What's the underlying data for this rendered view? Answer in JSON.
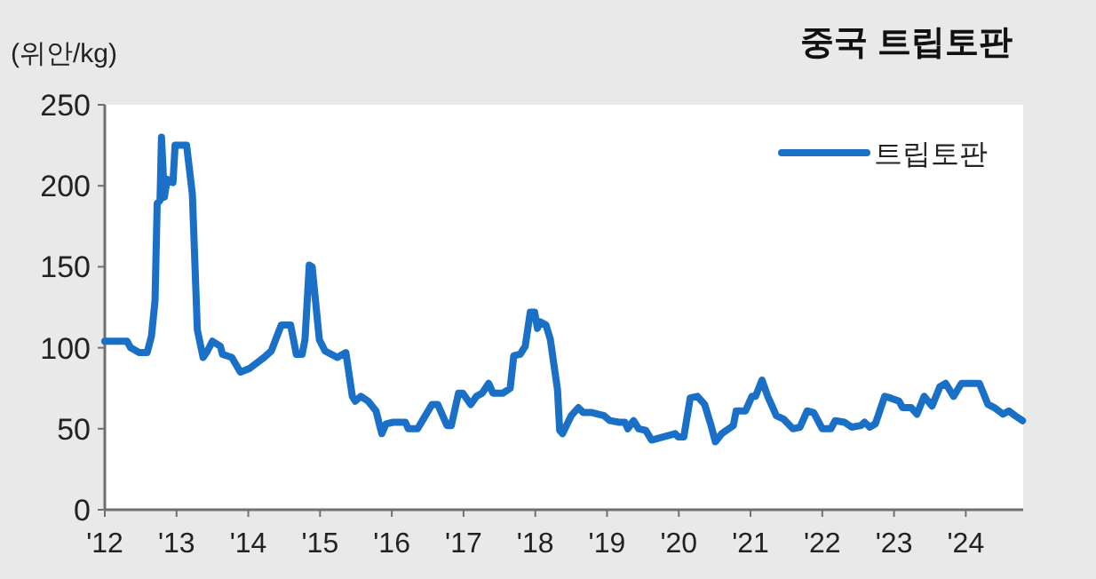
{
  "chart_data": {
    "type": "line",
    "title": "중국 트립토판",
    "ylabel": "(위안/kg)",
    "xlim": [
      2012,
      2024.8
    ],
    "ylim": [
      0,
      250
    ],
    "xticks": [
      {
        "value": 2012,
        "label": "'12"
      },
      {
        "value": 2013,
        "label": "'13"
      },
      {
        "value": 2014,
        "label": "'14"
      },
      {
        "value": 2015,
        "label": "'15"
      },
      {
        "value": 2016,
        "label": "'16"
      },
      {
        "value": 2017,
        "label": "'17"
      },
      {
        "value": 2018,
        "label": "'18"
      },
      {
        "value": 2019,
        "label": "'19"
      },
      {
        "value": 2020,
        "label": "'20"
      },
      {
        "value": 2021,
        "label": "'21"
      },
      {
        "value": 2022,
        "label": "'22"
      },
      {
        "value": 2023,
        "label": "'23"
      },
      {
        "value": 2024,
        "label": "'24"
      }
    ],
    "yticks": [
      0,
      50,
      100,
      150,
      200,
      250
    ],
    "grid": false,
    "legend": "top right",
    "marker": "none",
    "line_style": "solid",
    "series": [
      {
        "name": "트립토판",
        "color": "#1a70c6",
        "x": [
          2012.0,
          2012.31,
          2012.36,
          2012.48,
          2012.59,
          2012.65,
          2012.7,
          2012.73,
          2012.77,
          2012.79,
          2012.83,
          2012.87,
          2012.95,
          2012.98,
          2013.14,
          2013.22,
          2013.29,
          2013.37,
          2013.43,
          2013.5,
          2013.61,
          2013.64,
          2013.77,
          2013.89,
          2014.01,
          2014.22,
          2014.32,
          2014.46,
          2014.59,
          2014.67,
          2014.75,
          2014.79,
          2014.85,
          2014.89,
          2014.99,
          2015.07,
          2015.24,
          2015.36,
          2015.45,
          2015.49,
          2015.57,
          2015.67,
          2015.78,
          2015.86,
          2015.92,
          2016.02,
          2016.19,
          2016.23,
          2016.36,
          2016.44,
          2016.56,
          2016.64,
          2016.77,
          2016.83,
          2016.93,
          2016.99,
          2017.1,
          2017.18,
          2017.26,
          2017.35,
          2017.41,
          2017.55,
          2017.65,
          2017.7,
          2017.79,
          2017.86,
          2017.93,
          2017.99,
          2018.03,
          2018.07,
          2018.15,
          2018.21,
          2018.31,
          2018.34,
          2018.38,
          2018.5,
          2018.6,
          2018.67,
          2018.79,
          2018.96,
          2019.04,
          2019.17,
          2019.25,
          2019.29,
          2019.37,
          2019.44,
          2019.54,
          2019.62,
          2019.79,
          2019.95,
          2019.99,
          2020.07,
          2020.16,
          2020.26,
          2020.36,
          2020.45,
          2020.51,
          2020.6,
          2020.76,
          2020.8,
          2020.93,
          2021.02,
          2021.07,
          2021.16,
          2021.24,
          2021.36,
          2021.46,
          2021.59,
          2021.69,
          2021.79,
          2021.88,
          2022.0,
          2022.12,
          2022.18,
          2022.31,
          2022.41,
          2022.54,
          2022.59,
          2022.66,
          2022.74,
          2022.87,
          2022.95,
          2023.07,
          2023.12,
          2023.24,
          2023.32,
          2023.42,
          2023.53,
          2023.64,
          2023.72,
          2023.83,
          2023.94,
          2024.07,
          2024.19,
          2024.31,
          2024.4,
          2024.52,
          2024.6,
          2024.69,
          2024.79
        ],
        "values": [
          104,
          104,
          100,
          97,
          97,
          107,
          129,
          189,
          191,
          230,
          193,
          204,
          202,
          225,
          225,
          195,
          111,
          94,
          98,
          104,
          101,
          96,
          94,
          85,
          87,
          94,
          98,
          114,
          114,
          96,
          96,
          105,
          151,
          150,
          105,
          98,
          94,
          97,
          70,
          67,
          70,
          67,
          61,
          47,
          53,
          54,
          54,
          50,
          50,
          56,
          65,
          65,
          52,
          52,
          72,
          72,
          65,
          70,
          72,
          78,
          72,
          72,
          75,
          95,
          96,
          101,
          122,
          122,
          112,
          116,
          114,
          105,
          74,
          49,
          47,
          58,
          63,
          60,
          60,
          58,
          55,
          54,
          54,
          50,
          55,
          50,
          49,
          43,
          45,
          47,
          45,
          45,
          69,
          70,
          65,
          52,
          42,
          47,
          52,
          61,
          61,
          70,
          70,
          80,
          70,
          58,
          56,
          50,
          51,
          61,
          60,
          50,
          50,
          55,
          54,
          51,
          52,
          54,
          51,
          53,
          70,
          69,
          67,
          63,
          63,
          59,
          70,
          64,
          76,
          78,
          70,
          78,
          78,
          78,
          65,
          63,
          59,
          61,
          58,
          55
        ]
      }
    ]
  }
}
